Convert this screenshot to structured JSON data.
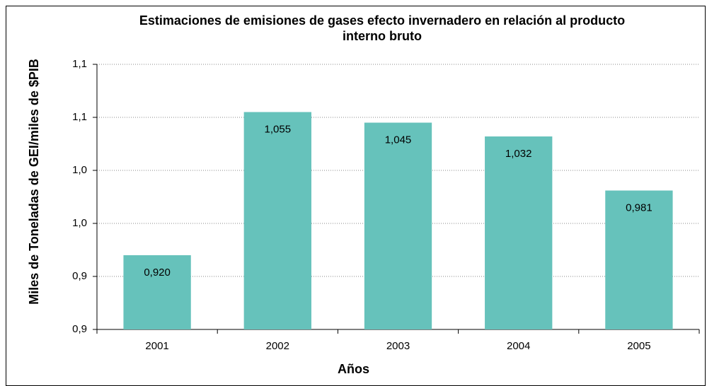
{
  "chart_data": {
    "type": "bar",
    "title": "Estimaciones de emisiones de gases efecto invernadero en relación al producto interno bruto",
    "xlabel": "Años",
    "ylabel": "Miles de Toneladas de GEI/miles de $PIB",
    "categories": [
      "2001",
      "2002",
      "2003",
      "2004",
      "2005"
    ],
    "values": [
      0.92,
      1.055,
      1.045,
      1.032,
      0.981
    ],
    "value_labels": [
      "0,920",
      "1,055",
      "1,045",
      "1,032",
      "0,981"
    ],
    "color": "#66c2bb",
    "ylim": [
      0.85,
      1.1
    ],
    "yticks": [
      {
        "value": 0.85,
        "label": "0,9"
      },
      {
        "value": 0.9,
        "label": "0,9"
      },
      {
        "value": 0.95,
        "label": "1,0"
      },
      {
        "value": 1.0,
        "label": "1,0"
      },
      {
        "value": 1.05,
        "label": "1,1"
      },
      {
        "value": 1.1,
        "label": "1,1"
      }
    ],
    "grid": true
  }
}
